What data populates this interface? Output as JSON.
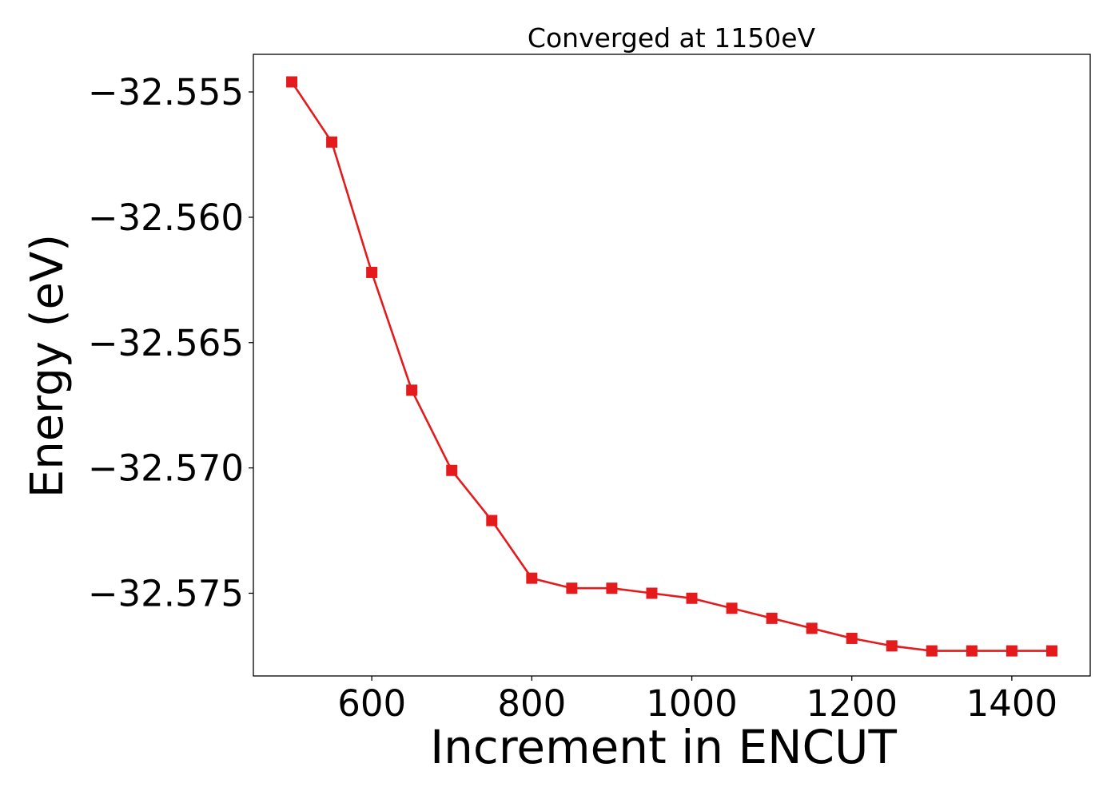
{
  "chart_data": {
    "type": "line",
    "title": "Converged at 1150eV",
    "xlabel": "Increment in ENCUT",
    "ylabel": "Energy (eV)",
    "xlim": [
      452,
      1498
    ],
    "ylim": [
      -32.5783,
      -32.5535
    ],
    "x_ticks": [
      600,
      800,
      1000,
      1200,
      1400
    ],
    "x_tick_labels": [
      "600",
      "800",
      "1000",
      "1200",
      "1400"
    ],
    "y_ticks": [
      -32.555,
      -32.56,
      -32.565,
      -32.57,
      -32.575
    ],
    "y_tick_labels": [
      "−32.555",
      "−32.560",
      "−32.565",
      "−32.570",
      "−32.575"
    ],
    "grid": false,
    "marker": "square",
    "series": [
      {
        "color": "#e41a1c",
        "x": [
          500,
          550,
          600,
          650,
          700,
          750,
          800,
          850,
          900,
          950,
          1000,
          1050,
          1100,
          1150,
          1200,
          1250,
          1300,
          1350,
          1400,
          1450
        ],
        "y": [
          -32.5546,
          -32.557,
          -32.5622,
          -32.5669,
          -32.5701,
          -32.5721,
          -32.5744,
          -32.5748,
          -32.5748,
          -32.575,
          -32.5752,
          -32.5756,
          -32.576,
          -32.5764,
          -32.5768,
          -32.5771,
          -32.5773,
          -32.5773,
          -32.5773,
          -32.5773
        ]
      }
    ]
  }
}
